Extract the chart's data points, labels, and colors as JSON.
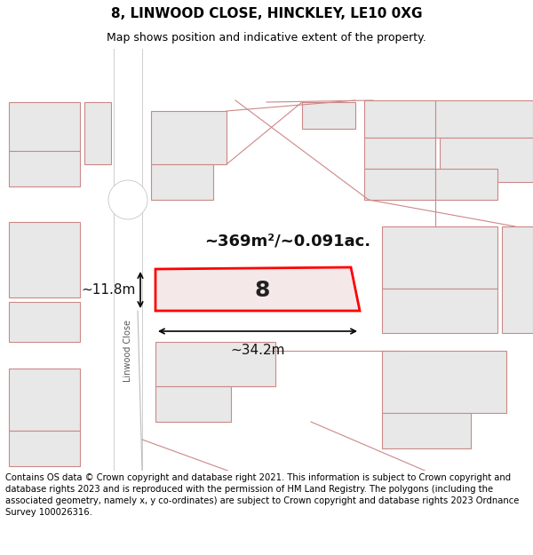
{
  "title": "8, LINWOOD CLOSE, HINCKLEY, LE10 0XG",
  "subtitle": "Map shows position and indicative extent of the property.",
  "footer": "Contains OS data © Crown copyright and database right 2021. This information is subject to Crown copyright and database rights 2023 and is reproduced with the permission of HM Land Registry. The polygons (including the associated geometry, namely x, y co-ordinates) are subject to Crown copyright and database rights 2023 Ordnance Survey 100026316.",
  "map_bg": "#f5f5f5",
  "title_bg": "#ffffff",
  "footer_bg": "#ffffff",
  "plot_color": "#ff0000",
  "plot_fill": "#f0e8e8",
  "road_color": "#cccccc",
  "building_fill": "#e8e8e8",
  "building_stroke": "#cc8888",
  "area_text": "~369m²/~0.091ac.",
  "width_text": "~34.2m",
  "height_text": "~11.8m",
  "number_text": "8",
  "street_text": "Linwood Close"
}
